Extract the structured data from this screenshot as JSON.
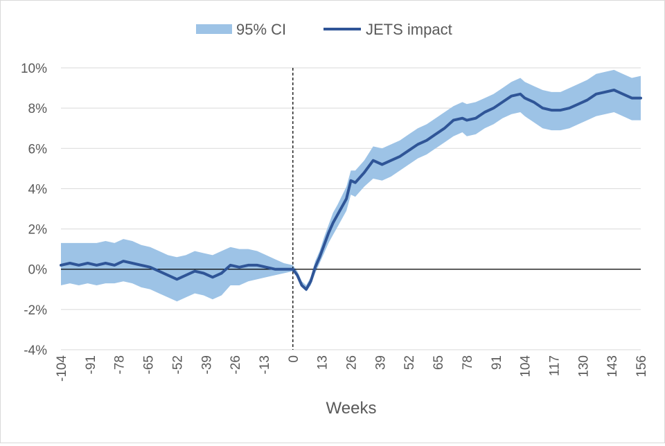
{
  "chart_data": {
    "type": "area",
    "xlabel": "Weeks",
    "ylabel": "",
    "xlim": [
      -104,
      156
    ],
    "ylim": [
      -4,
      10
    ],
    "grid": true,
    "legend_position": "top-center",
    "x_ticks": [
      -104,
      -91,
      -78,
      -65,
      -52,
      -39,
      -26,
      -13,
      0,
      13,
      26,
      39,
      52,
      65,
      78,
      91,
      104,
      117,
      130,
      143,
      156
    ],
    "y_ticks": [
      -4,
      -2,
      0,
      2,
      4,
      6,
      8,
      10
    ],
    "y_tick_labels": [
      "-4%",
      "-2%",
      "0%",
      "2%",
      "4%",
      "6%",
      "8%",
      "10%"
    ],
    "reference_lines": {
      "vertical_dashed_x": 0,
      "horizontal_y": 0
    },
    "x": [
      -104,
      -100,
      -96,
      -92,
      -88,
      -84,
      -80,
      -76,
      -72,
      -68,
      -64,
      -60,
      -56,
      -52,
      -48,
      -44,
      -40,
      -36,
      -32,
      -28,
      -24,
      -20,
      -16,
      -12,
      -8,
      -4,
      0,
      2,
      4,
      6,
      8,
      10,
      12,
      14,
      16,
      18,
      20,
      24,
      26,
      28,
      32,
      36,
      40,
      44,
      48,
      52,
      56,
      60,
      64,
      68,
      72,
      76,
      78,
      82,
      86,
      90,
      94,
      98,
      102,
      104,
      108,
      112,
      116,
      120,
      124,
      128,
      132,
      136,
      140,
      144,
      148,
      152,
      156
    ],
    "series": [
      {
        "name": "JETS impact",
        "color": "#2f5597",
        "values": [
          0.2,
          0.3,
          0.2,
          0.3,
          0.2,
          0.3,
          0.2,
          0.4,
          0.3,
          0.2,
          0.1,
          -0.1,
          -0.3,
          -0.5,
          -0.3,
          -0.1,
          -0.2,
          -0.4,
          -0.2,
          0.2,
          0.1,
          0.2,
          0.2,
          0.1,
          0.0,
          0.0,
          0.0,
          -0.3,
          -0.8,
          -1.0,
          -0.6,
          0.1,
          0.6,
          1.2,
          1.8,
          2.3,
          2.7,
          3.5,
          4.4,
          4.3,
          4.8,
          5.4,
          5.2,
          5.4,
          5.6,
          5.9,
          6.2,
          6.4,
          6.7,
          7.0,
          7.4,
          7.5,
          7.4,
          7.5,
          7.8,
          8.0,
          8.3,
          8.6,
          8.7,
          8.5,
          8.3,
          8.0,
          7.9,
          7.9,
          8.0,
          8.2,
          8.4,
          8.7,
          8.8,
          8.9,
          8.7,
          8.5,
          8.5
        ]
      },
      {
        "name": "95% CI",
        "color": "#9dc3e6",
        "lower": [
          -0.8,
          -0.7,
          -0.8,
          -0.7,
          -0.8,
          -0.7,
          -0.7,
          -0.6,
          -0.7,
          -0.9,
          -1.0,
          -1.2,
          -1.4,
          -1.6,
          -1.4,
          -1.2,
          -1.3,
          -1.5,
          -1.3,
          -0.8,
          -0.8,
          -0.6,
          -0.5,
          -0.4,
          -0.3,
          -0.2,
          -0.1,
          -0.4,
          -0.9,
          -1.1,
          -0.8,
          -0.2,
          0.3,
          0.8,
          1.3,
          1.7,
          2.1,
          2.9,
          3.7,
          3.6,
          4.1,
          4.5,
          4.4,
          4.6,
          4.9,
          5.2,
          5.5,
          5.7,
          6.0,
          6.3,
          6.6,
          6.8,
          6.6,
          6.7,
          7.0,
          7.2,
          7.5,
          7.7,
          7.8,
          7.6,
          7.3,
          7.0,
          6.9,
          6.9,
          7.0,
          7.2,
          7.4,
          7.6,
          7.7,
          7.8,
          7.6,
          7.4,
          7.4
        ],
        "upper": [
          1.3,
          1.3,
          1.3,
          1.3,
          1.3,
          1.4,
          1.3,
          1.5,
          1.4,
          1.2,
          1.1,
          0.9,
          0.7,
          0.6,
          0.7,
          0.9,
          0.8,
          0.7,
          0.9,
          1.1,
          1.0,
          1.0,
          0.9,
          0.7,
          0.5,
          0.3,
          0.2,
          -0.1,
          -0.6,
          -0.8,
          -0.4,
          0.4,
          0.9,
          1.6,
          2.2,
          2.8,
          3.2,
          4.1,
          4.9,
          4.9,
          5.4,
          6.1,
          6.0,
          6.2,
          6.4,
          6.7,
          7.0,
          7.2,
          7.5,
          7.8,
          8.1,
          8.3,
          8.2,
          8.3,
          8.5,
          8.7,
          9.0,
          9.3,
          9.5,
          9.3,
          9.1,
          8.9,
          8.8,
          8.8,
          9.0,
          9.2,
          9.4,
          9.7,
          9.8,
          9.9,
          9.7,
          9.5,
          9.6
        ]
      }
    ]
  }
}
